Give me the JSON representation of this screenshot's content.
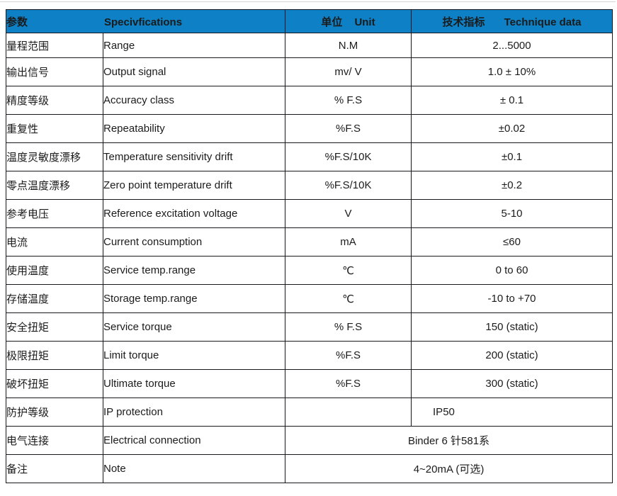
{
  "table": {
    "header": {
      "param_zh": "参数",
      "param_en": "Specivfications",
      "unit_zh": "单位",
      "unit_en": "Unit",
      "tech_zh": "技术指标",
      "tech_en": "Technique data"
    },
    "rows": [
      {
        "zh": "量程范围",
        "en": "Range",
        "unit": "N.M",
        "value": "2...5000"
      },
      {
        "zh": "输出信号",
        "en": "Output signal",
        "unit": "mv/ V",
        "value": "1.0 ± 10%"
      },
      {
        "zh": "精度等级",
        "en": "Accuracy class",
        "unit": "% F.S",
        "value": "± 0.1"
      },
      {
        "zh": "重复性",
        "en": "Repeatability",
        "unit": "%F.S",
        "value": "±0.02"
      },
      {
        "zh": "温度灵敏度漂移",
        "en": "Temperature sensitivity drift",
        "unit": "%F.S/10K",
        "value": "±0.1"
      },
      {
        "zh": "零点温度漂移",
        "en": "Zero point temperature drift",
        "unit": "%F.S/10K",
        "value": "±0.2"
      },
      {
        "zh": "参考电压",
        "en": "Reference excitation voltage",
        "unit": "V",
        "value": "5-10"
      },
      {
        "zh": "电流",
        "en": "Current consumption",
        "unit": "mA",
        "value": "≤60"
      },
      {
        "zh": "使用温度",
        "en": "Service temp.range",
        "unit": "℃",
        "value": "0 to 60"
      },
      {
        "zh": "存储温度",
        "en": "Storage temp.range",
        "unit": "℃",
        "value": "-10 to +70"
      },
      {
        "zh": "安全扭矩",
        "en": "Service torque",
        "unit": "% F.S",
        "value": "150 (static)"
      },
      {
        "zh": "极限扭矩",
        "en": "Limit torque",
        "unit": "%F.S",
        "value": "200 (static)"
      },
      {
        "zh": "破坏扭矩",
        "en": "Ultimate torque",
        "unit": "%F.S",
        "value": "300 (static)"
      },
      {
        "zh": "防护等级",
        "en": "IP protection",
        "unit": "",
        "value": "IP50",
        "value_align": "left"
      },
      {
        "zh": "电气连接",
        "en": "Electrical connection",
        "merged_value": "Binder 6 针581系"
      },
      {
        "zh": "备注",
        "en": "Note",
        "merged_value": "4~20mA (可选)"
      }
    ],
    "colors": {
      "header_bg": "#0E80C5",
      "header_text": "#FFFFFF",
      "border": "#17171D",
      "body_text": "#1B1B1B"
    }
  }
}
